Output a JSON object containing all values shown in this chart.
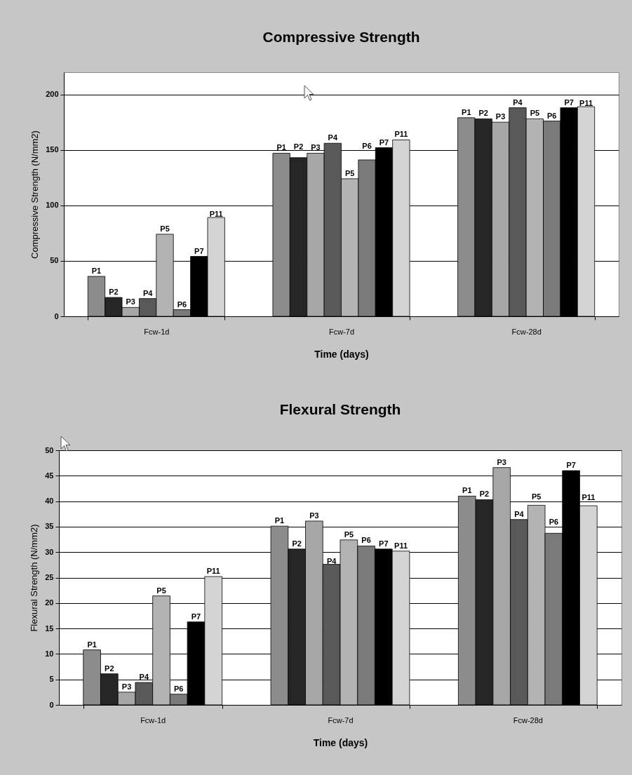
{
  "chart_data": [
    {
      "type": "bar",
      "title": "Compressive Strength",
      "xlabel": "Time (days)",
      "ylabel": "Compressive Strength (N/mm2)",
      "categories": [
        "Fcw-1d",
        "Fcw-7d",
        "Fcw-28d"
      ],
      "series": [
        {
          "name": "P1",
          "color": "#8c8c8c",
          "values": [
            36,
            147,
            179
          ]
        },
        {
          "name": "P2",
          "color": "#262626",
          "values": [
            17,
            143,
            178
          ]
        },
        {
          "name": "P3",
          "color": "#a6a6a6",
          "values": [
            8,
            147,
            175
          ]
        },
        {
          "name": "P4",
          "color": "#595959",
          "values": [
            16,
            156,
            188
          ]
        },
        {
          "name": "P5",
          "color": "#b3b3b3",
          "values": [
            74,
            124,
            178
          ]
        },
        {
          "name": "P6",
          "color": "#7a7a7a",
          "values": [
            6,
            141,
            176
          ]
        },
        {
          "name": "P7",
          "color": "#000000",
          "values": [
            54,
            152,
            188
          ]
        },
        {
          "name": "P11",
          "color": "#d4d4d4",
          "values": [
            89,
            159,
            189
          ]
        }
      ],
      "ylim": [
        0,
        220
      ],
      "yticks": [
        0,
        50,
        100,
        150,
        200
      ],
      "grid": "y",
      "legend": false
    },
    {
      "type": "bar",
      "title": "Flexural Strength",
      "xlabel": "Time (days)",
      "ylabel": "Flexural Strength (N/mm2)",
      "categories": [
        "Fcw-1d",
        "Fcw-7d",
        "Fcw-28d"
      ],
      "series": [
        {
          "name": "P1",
          "color": "#8c8c8c",
          "values": [
            10.8,
            35.1,
            41.0
          ]
        },
        {
          "name": "P2",
          "color": "#262626",
          "values": [
            6.1,
            30.6,
            40.3
          ]
        },
        {
          "name": "P3",
          "color": "#a6a6a6",
          "values": [
            2.5,
            36.1,
            46.6
          ]
        },
        {
          "name": "P4",
          "color": "#595959",
          "values": [
            4.4,
            27.6,
            36.4
          ]
        },
        {
          "name": "P5",
          "color": "#b3b3b3",
          "values": [
            21.4,
            32.4,
            39.2
          ]
        },
        {
          "name": "P6",
          "color": "#7a7a7a",
          "values": [
            2.1,
            31.2,
            33.7
          ]
        },
        {
          "name": "P7",
          "color": "#000000",
          "values": [
            16.3,
            30.6,
            46.0
          ]
        },
        {
          "name": "P11",
          "color": "#d4d4d4",
          "values": [
            25.2,
            30.2,
            39.1
          ]
        }
      ],
      "ylim": [
        0,
        50
      ],
      "yticks": [
        0,
        5,
        10,
        15,
        20,
        25,
        30,
        35,
        40,
        45,
        50
      ],
      "grid": "y",
      "legend": false
    }
  ]
}
